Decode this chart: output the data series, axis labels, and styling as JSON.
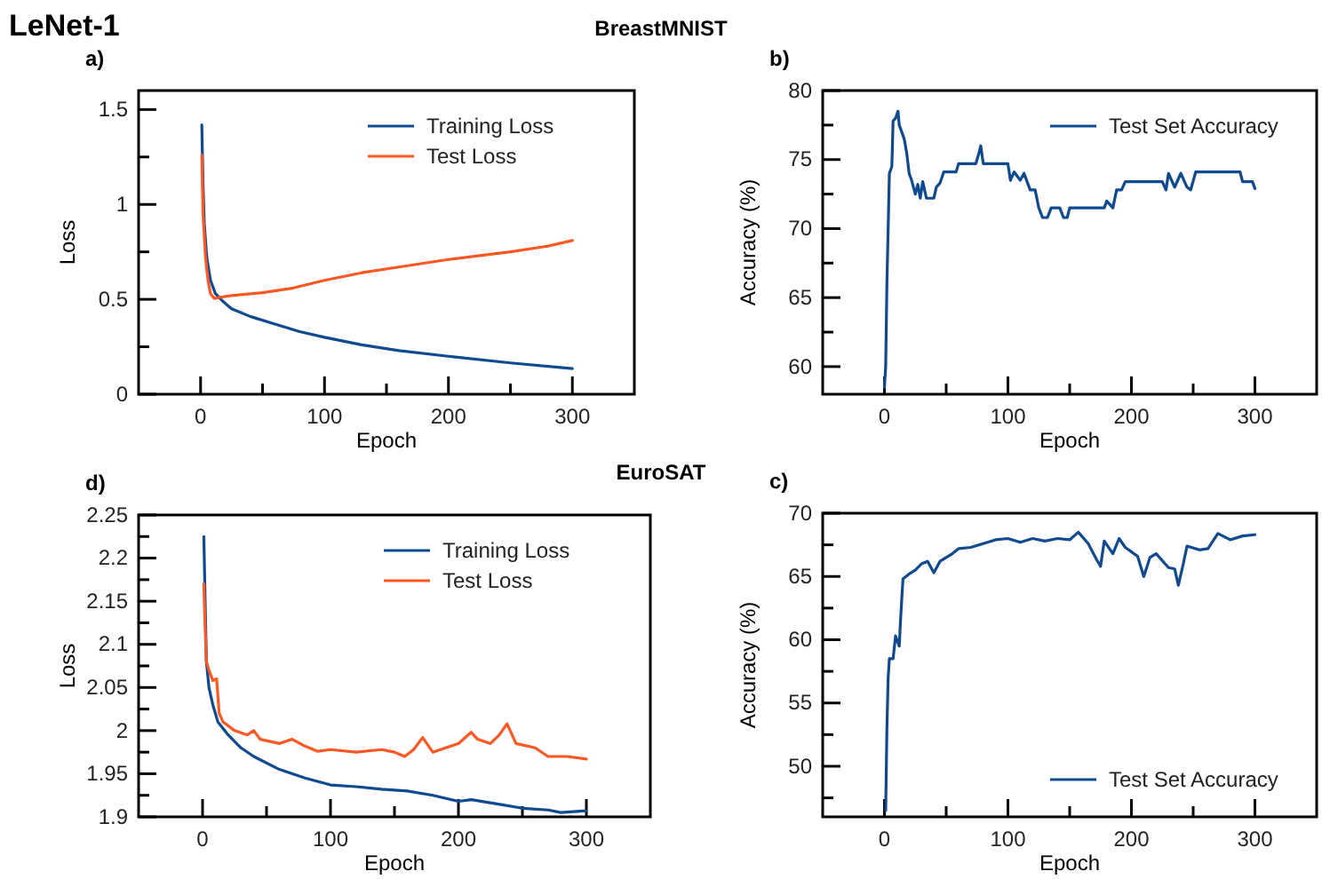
{
  "chart_data": [
    {
      "type": "line",
      "title": "a)",
      "annotations": [
        "LeNet-1",
        "BreastMNIST"
      ],
      "xlabel": "Epoch",
      "ylabel": "Loss",
      "xlim": [
        -50,
        350
      ],
      "xticks": [
        0,
        {
          "value": 50,
          "label": null
        },
        100,
        {
          "value": 150,
          "label": null
        },
        200,
        {
          "value": 250,
          "label": null
        },
        300
      ],
      "ylim": [
        0,
        1.6
      ],
      "yticks": [
        0,
        {
          "value": 0.25,
          "label": null
        },
        0.5,
        {
          "value": 0.75,
          "label": null
        },
        1,
        {
          "value": 1.25,
          "label": null
        },
        1.5
      ],
      "legend": "top right",
      "grid": false,
      "marker": "none",
      "line_style": "solid",
      "series": [
        {
          "name": "Training Loss",
          "color": "#0d4a91",
          "x": [
            1,
            2,
            3,
            5,
            8,
            12,
            18,
            25,
            40,
            60,
            80,
            100,
            130,
            160,
            200,
            250,
            300
          ],
          "values": [
            1.42,
            1.1,
            0.9,
            0.72,
            0.6,
            0.53,
            0.49,
            0.45,
            0.41,
            0.37,
            0.33,
            0.3,
            0.26,
            0.23,
            0.2,
            0.165,
            0.135
          ]
        },
        {
          "name": "Test Loss",
          "color": "#ff5722",
          "x": [
            1,
            2,
            4,
            6,
            8,
            11,
            15,
            25,
            50,
            75,
            100,
            130,
            160,
            200,
            250,
            280,
            300
          ],
          "values": [
            1.26,
            0.95,
            0.72,
            0.6,
            0.53,
            0.505,
            0.51,
            0.52,
            0.535,
            0.56,
            0.6,
            0.64,
            0.67,
            0.71,
            0.75,
            0.78,
            0.81
          ]
        }
      ]
    },
    {
      "type": "line",
      "title": "b)",
      "xlabel": "Epoch",
      "ylabel": "Accuracy (%)",
      "xlim": [
        -50,
        350
      ],
      "xticks": [
        0,
        {
          "value": 50,
          "label": null
        },
        100,
        {
          "value": 150,
          "label": null
        },
        200,
        {
          "value": 250,
          "label": null
        },
        300
      ],
      "ylim": [
        58,
        80
      ],
      "yticks": [
        60,
        {
          "value": 62.5,
          "label": null
        },
        65,
        {
          "value": 67.5,
          "label": null
        },
        70,
        {
          "value": 72.5,
          "label": null
        },
        75,
        {
          "value": 77.5,
          "label": null
        },
        80
      ],
      "legend": "top right",
      "grid": false,
      "marker": "none",
      "line_style": "solid",
      "series": [
        {
          "name": "Test Set Accuracy",
          "color": "#0d4a91",
          "x": [
            0,
            1,
            2,
            3,
            4,
            6,
            7,
            9,
            11,
            12,
            14,
            16,
            18,
            20,
            22,
            25,
            27,
            29,
            31,
            34,
            40,
            42,
            45,
            48,
            58,
            60,
            74,
            76,
            78,
            80,
            92,
            100,
            102,
            105,
            110,
            113,
            118,
            122,
            125,
            128,
            132,
            135,
            142,
            145,
            148,
            150,
            178,
            180,
            185,
            188,
            192,
            195,
            225,
            228,
            230,
            235,
            240,
            245,
            248,
            252,
            288,
            290,
            298,
            300
          ],
          "values": [
            58.5,
            60,
            66,
            70,
            74,
            74.5,
            77.8,
            78,
            78.5,
            77.5,
            77,
            76.5,
            75.5,
            74,
            73.5,
            72.5,
            73.2,
            72.2,
            73.4,
            72.2,
            72.2,
            73,
            73.3,
            74.1,
            74.1,
            74.7,
            74.7,
            75.3,
            76,
            74.7,
            74.7,
            74.7,
            73.5,
            74.1,
            73.5,
            74,
            72.8,
            72.8,
            71.5,
            70.8,
            70.8,
            71.5,
            71.5,
            70.8,
            70.8,
            71.5,
            71.5,
            72,
            71.5,
            72.8,
            72.8,
            73.4,
            73.4,
            72.8,
            74,
            73,
            74,
            73,
            72.8,
            74.1,
            74.1,
            73.4,
            73.4,
            72.9
          ]
        }
      ]
    },
    {
      "type": "line",
      "title": "d)",
      "annotations": [
        "EuroSAT"
      ],
      "xlabel": "Epoch",
      "ylabel": "Loss",
      "xlim": [
        -50,
        350
      ],
      "xticks": [
        0,
        {
          "value": 50,
          "label": null
        },
        100,
        {
          "value": 150,
          "label": null
        },
        200,
        {
          "value": 250,
          "label": null
        },
        300
      ],
      "ylim": [
        1.9,
        2.25
      ],
      "yticks": [
        1.9,
        {
          "value": 1.925,
          "label": null
        },
        1.95,
        {
          "value": 1.975,
          "label": null
        },
        2,
        {
          "value": 2.025,
          "label": null
        },
        2.05,
        {
          "value": 2.075,
          "label": null
        },
        2.1,
        {
          "value": 2.125,
          "label": null
        },
        2.15,
        {
          "value": 2.175,
          "label": null
        },
        2.2,
        {
          "value": 2.225,
          "label": null
        },
        2.25
      ],
      "legend": "top right",
      "grid": false,
      "marker": "none",
      "line_style": "solid",
      "series": [
        {
          "name": "Training Loss",
          "color": "#0d4a91",
          "x": [
            1,
            2,
            3,
            5,
            8,
            12,
            20,
            30,
            40,
            60,
            80,
            100,
            120,
            140,
            160,
            180,
            200,
            210,
            230,
            250,
            270,
            280,
            300
          ],
          "values": [
            2.225,
            2.15,
            2.08,
            2.05,
            2.03,
            2.01,
            1.995,
            1.98,
            1.97,
            1.955,
            1.945,
            1.937,
            1.935,
            1.932,
            1.93,
            1.925,
            1.918,
            1.92,
            1.915,
            1.91,
            1.908,
            1.905,
            1.907
          ]
        },
        {
          "name": "Test Loss",
          "color": "#ff5722",
          "x": [
            1,
            2,
            3,
            5,
            8,
            11,
            13,
            16,
            25,
            35,
            40,
            45,
            60,
            70,
            80,
            90,
            100,
            120,
            140,
            150,
            158,
            165,
            172,
            180,
            190,
            200,
            210,
            215,
            225,
            232,
            238,
            245,
            260,
            270,
            285,
            300
          ],
          "values": [
            2.17,
            2.12,
            2.08,
            2.07,
            2.058,
            2.06,
            2.02,
            2.01,
            2.0,
            1.995,
            2.0,
            1.99,
            1.985,
            1.99,
            1.982,
            1.976,
            1.978,
            1.975,
            1.978,
            1.975,
            1.97,
            1.978,
            1.992,
            1.975,
            1.98,
            1.985,
            1.998,
            1.99,
            1.985,
            1.995,
            2.008,
            1.985,
            1.98,
            1.97,
            1.97,
            1.967
          ]
        }
      ]
    },
    {
      "type": "line",
      "title": "c)",
      "xlabel": "Epoch",
      "ylabel": "Accuracy (%)",
      "xlim": [
        -50,
        350
      ],
      "xticks": [
        0,
        {
          "value": 50,
          "label": null
        },
        100,
        {
          "value": 150,
          "label": null
        },
        200,
        {
          "value": 250,
          "label": null
        },
        300
      ],
      "ylim": [
        46,
        70
      ],
      "yticks": [
        {
          "value": 47.5,
          "label": null
        },
        50,
        {
          "value": 52.5,
          "label": null
        },
        55,
        {
          "value": 57.5,
          "label": null
        },
        60,
        {
          "value": 62.5,
          "label": null
        },
        65,
        {
          "value": 67.5,
          "label": null
        },
        70
      ],
      "legend": "bottom right",
      "grid": false,
      "marker": "none",
      "line_style": "solid",
      "series": [
        {
          "name": "Test Set Accuracy",
          "color": "#0d4a91",
          "x": [
            1,
            2,
            3,
            4,
            7,
            9,
            12,
            13,
            15,
            20,
            25,
            30,
            35,
            40,
            45,
            55,
            60,
            70,
            80,
            90,
            100,
            110,
            120,
            130,
            140,
            150,
            157,
            165,
            172,
            175,
            178,
            185,
            190,
            195,
            205,
            210,
            215,
            220,
            230,
            235,
            238,
            242,
            245,
            255,
            262,
            270,
            280,
            290,
            300
          ],
          "values": [
            46.5,
            53,
            57,
            58.5,
            58.5,
            60.3,
            59.5,
            61.5,
            64.8,
            65.2,
            65.5,
            66,
            66.2,
            65.3,
            66.2,
            66.8,
            67.2,
            67.3,
            67.6,
            67.9,
            68,
            67.7,
            68,
            67.8,
            68,
            67.9,
            68.5,
            67.6,
            66.3,
            65.8,
            67.8,
            66.8,
            68,
            67.3,
            66.6,
            65,
            66.5,
            66.8,
            65.7,
            65.6,
            64.3,
            66,
            67.4,
            67.1,
            67.2,
            68.4,
            67.9,
            68.2,
            68.3
          ]
        }
      ]
    }
  ]
}
